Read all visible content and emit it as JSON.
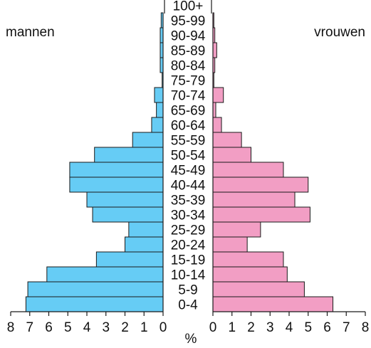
{
  "chart_data": {
    "type": "bar",
    "orientation": "horizontal-population-pyramid",
    "title": "",
    "categories": [
      "0-4",
      "5-9",
      "10-14",
      "15-19",
      "20-24",
      "25-29",
      "30-34",
      "35-39",
      "40-44",
      "45-49",
      "50-54",
      "55-59",
      "60-64",
      "65-69",
      "70-74",
      "75-79",
      "80-84",
      "85-89",
      "90-94",
      "95-99",
      "100+"
    ],
    "series": [
      {
        "name": "mannen",
        "side": "left",
        "color": "#66ccf5",
        "values": [
          7.2,
          7.1,
          6.1,
          3.5,
          2.0,
          1.8,
          3.7,
          4.0,
          4.9,
          4.9,
          3.6,
          1.6,
          0.6,
          0.35,
          0.45,
          0.05,
          0.15,
          0.15,
          0.15,
          0.1,
          0.0
        ]
      },
      {
        "name": "vrouwen",
        "side": "right",
        "color": "#f29ec4",
        "values": [
          6.3,
          4.8,
          3.9,
          3.7,
          1.8,
          2.5,
          5.1,
          4.3,
          5.0,
          3.7,
          2.0,
          1.5,
          0.45,
          0.15,
          0.55,
          0.05,
          0.1,
          0.2,
          0.1,
          0.05,
          0.0
        ]
      }
    ],
    "xlabel": "%",
    "xlim": [
      0,
      8
    ],
    "xticks_left": [
      "8",
      "7",
      "6",
      "5",
      "4",
      "3",
      "2",
      "1",
      "0"
    ],
    "xticks_right": [
      "0",
      "1",
      "2",
      "3",
      "4",
      "5",
      "6",
      "7",
      "8"
    ],
    "grid": false,
    "legend": "labels top-left and top-right"
  }
}
